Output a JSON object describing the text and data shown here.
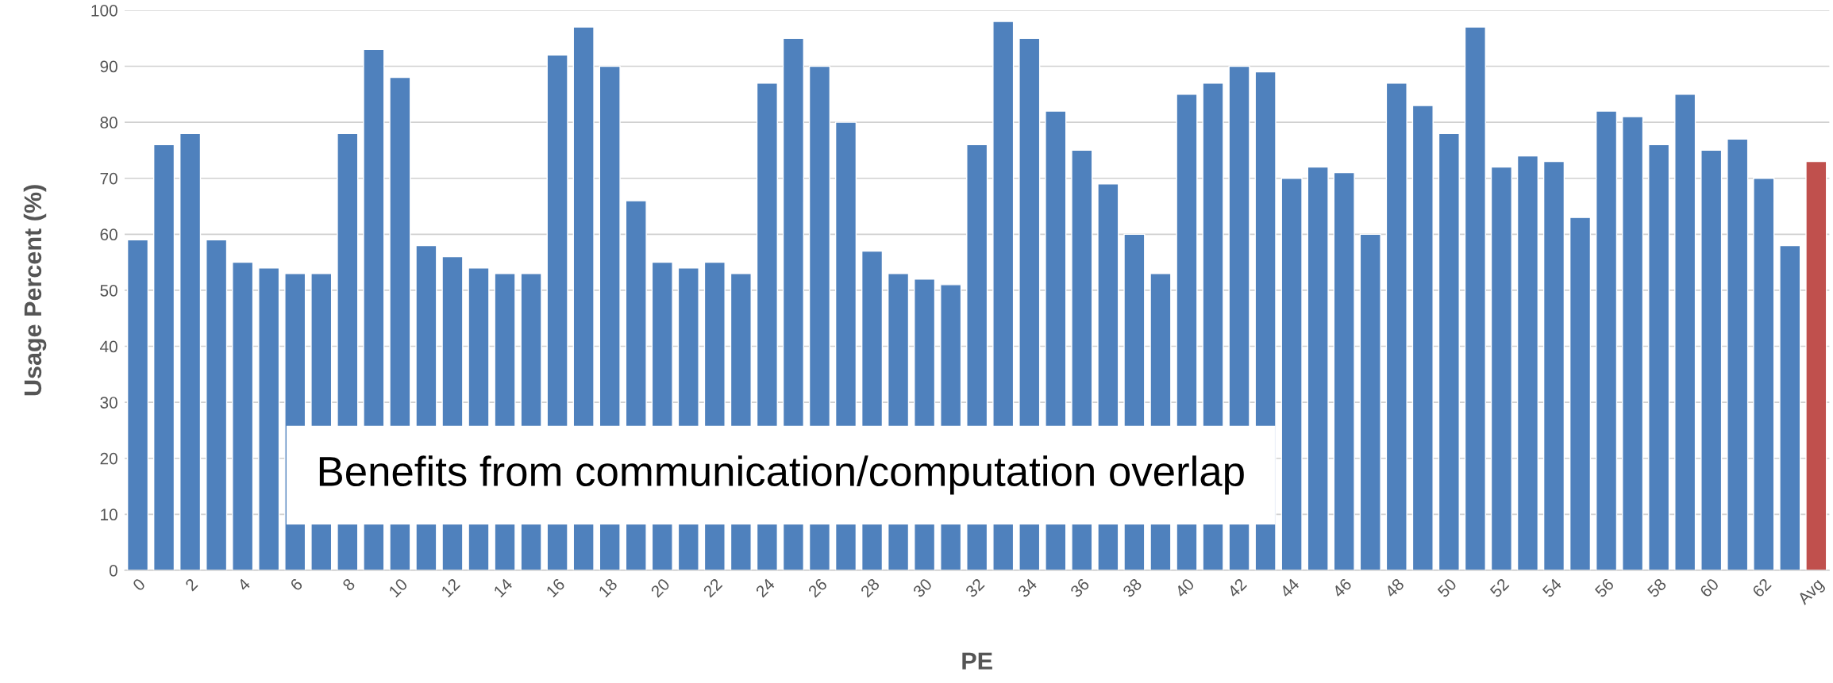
{
  "chart_data": {
    "type": "bar",
    "xlabel": "PE",
    "ylabel": "Usage Percent (%)",
    "categories": [
      "0",
      null,
      "2",
      null,
      "4",
      null,
      "6",
      null,
      "8",
      null,
      "10",
      null,
      "12",
      null,
      "14",
      null,
      "16",
      null,
      "18",
      null,
      "20",
      null,
      "22",
      null,
      "24",
      null,
      "26",
      null,
      "28",
      null,
      "30",
      null,
      "32",
      null,
      "34",
      null,
      "36",
      null,
      "38",
      null,
      "40",
      null,
      "42",
      null,
      "44",
      null,
      "46",
      null,
      "48",
      null,
      "50",
      null,
      "52",
      null,
      "54",
      null,
      "56",
      null,
      "58",
      null,
      "60",
      null,
      "62",
      null,
      "Avg"
    ],
    "values": [
      59,
      76,
      78,
      59,
      55,
      54,
      53,
      53,
      78,
      93,
      88,
      58,
      56,
      54,
      53,
      53,
      92,
      97,
      90,
      66,
      55,
      54,
      55,
      53,
      87,
      95,
      90,
      80,
      57,
      53,
      52,
      51,
      76,
      98,
      95,
      82,
      75,
      69,
      60,
      53,
      85,
      87,
      90,
      89,
      70,
      72,
      71,
      60,
      87,
      83,
      78,
      97,
      72,
      74,
      73,
      63,
      82,
      81,
      76,
      85,
      75,
      77,
      70,
      58,
      73
    ],
    "colors": [
      "#4f81bd",
      "#4f81bd",
      "#4f81bd",
      "#4f81bd",
      "#4f81bd",
      "#4f81bd",
      "#4f81bd",
      "#4f81bd",
      "#4f81bd",
      "#4f81bd",
      "#4f81bd",
      "#4f81bd",
      "#4f81bd",
      "#4f81bd",
      "#4f81bd",
      "#4f81bd",
      "#4f81bd",
      "#4f81bd",
      "#4f81bd",
      "#4f81bd",
      "#4f81bd",
      "#4f81bd",
      "#4f81bd",
      "#4f81bd",
      "#4f81bd",
      "#4f81bd",
      "#4f81bd",
      "#4f81bd",
      "#4f81bd",
      "#4f81bd",
      "#4f81bd",
      "#4f81bd",
      "#4f81bd",
      "#4f81bd",
      "#4f81bd",
      "#4f81bd",
      "#4f81bd",
      "#4f81bd",
      "#4f81bd",
      "#4f81bd",
      "#4f81bd",
      "#4f81bd",
      "#4f81bd",
      "#4f81bd",
      "#4f81bd",
      "#4f81bd",
      "#4f81bd",
      "#4f81bd",
      "#4f81bd",
      "#4f81bd",
      "#4f81bd",
      "#4f81bd",
      "#4f81bd",
      "#4f81bd",
      "#4f81bd",
      "#4f81bd",
      "#4f81bd",
      "#4f81bd",
      "#4f81bd",
      "#4f81bd",
      "#4f81bd",
      "#4f81bd",
      "#4f81bd",
      "#4f81bd",
      "#c0504d"
    ],
    "ylim": [
      0,
      100
    ],
    "yticks": [
      0,
      10,
      20,
      30,
      40,
      50,
      60,
      70,
      80,
      90,
      100
    ],
    "grid": "y",
    "annotations": [
      "Benefits from communication/computation overlap"
    ]
  }
}
